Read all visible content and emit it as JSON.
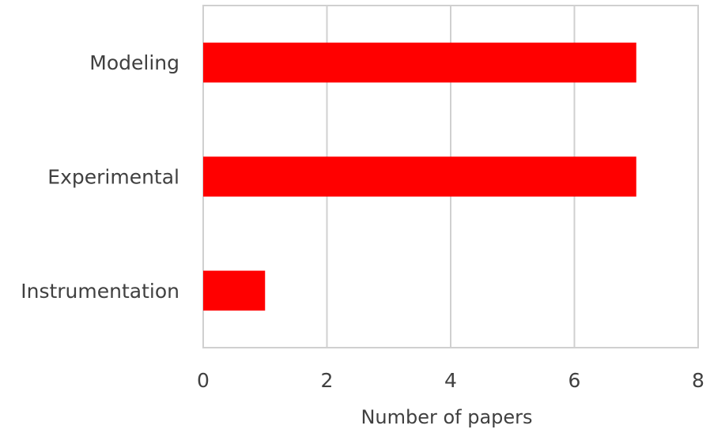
{
  "chart_data": {
    "type": "bar",
    "orientation": "horizontal",
    "categories": [
      "Modeling",
      "Experimental",
      "Instrumentation"
    ],
    "values": [
      7,
      7,
      1
    ],
    "title": "",
    "xlabel": "Number of papers",
    "ylabel": "",
    "xlim": [
      0,
      8
    ],
    "xticks": [
      "0",
      "2",
      "4",
      "6",
      "8"
    ],
    "grid": "vertical",
    "legend": "none",
    "bar_color": "#ff0000",
    "grid_color": "#d0d0d0",
    "text_color": "#404040"
  }
}
